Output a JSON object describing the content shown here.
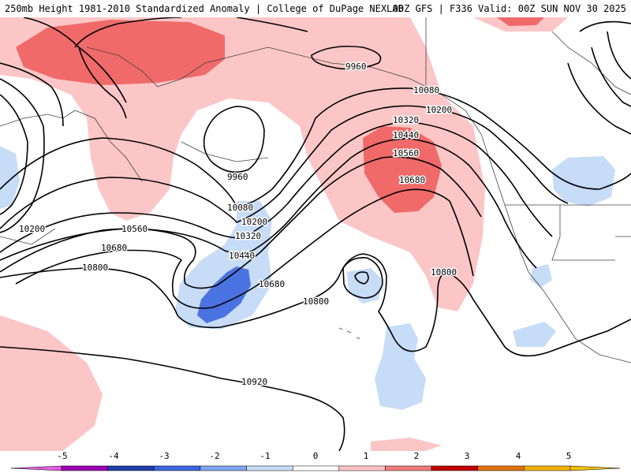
{
  "header": {
    "title": "250mb Height 1981-2010 Standardized Anomaly | College of DuPage NEXLAB",
    "run_info": "00Z GFS | F336 Valid: 00Z SUN NOV 30 2025"
  },
  "contour_labels": [
    {
      "id": "9960-north",
      "text": "9960"
    },
    {
      "id": "9960-low",
      "text": "9960"
    },
    {
      "id": "10080-ne",
      "text": "10080"
    },
    {
      "id": "10200-ne",
      "text": "10200"
    },
    {
      "id": "10320-mid",
      "text": "10320"
    },
    {
      "id": "10440-mid",
      "text": "10440"
    },
    {
      "id": "10560-mid",
      "text": "10560"
    },
    {
      "id": "10680-ridge",
      "text": "10680"
    },
    {
      "id": "10080-west",
      "text": "10080"
    },
    {
      "id": "10200-west",
      "text": "10200"
    },
    {
      "id": "10320-west",
      "text": "10320"
    },
    {
      "id": "10440-west",
      "text": "10440"
    },
    {
      "id": "10200-farwest",
      "text": "10200"
    },
    {
      "id": "10560-west",
      "text": "10560"
    },
    {
      "id": "10680-west",
      "text": "10680"
    },
    {
      "id": "10800-west",
      "text": "10800"
    },
    {
      "id": "10680-trough",
      "text": "10680"
    },
    {
      "id": "10800-central",
      "text": "10800"
    },
    {
      "id": "10800-east",
      "text": "10800"
    },
    {
      "id": "10920-south",
      "text": "10920"
    }
  ],
  "colorbar": {
    "ticks": [
      "-5",
      "-4",
      "-3",
      "-2",
      "-1",
      "0",
      "1",
      "2",
      "3",
      "4",
      "5"
    ],
    "segment_colors": [
      "#9b00b3",
      "#1f3fa8",
      "#3b66e0",
      "#7ea6f0",
      "#c6dcf7",
      "#ffffff",
      "#ffc4c4",
      "#f07a7a",
      "#c00000",
      "#e07000",
      "#f0b000"
    ],
    "left_end_color": "#e060e0",
    "right_end_color": "#f0c000"
  },
  "colors": {
    "anomaly_pos_1": "#fcc6c6",
    "anomaly_pos_2": "#f06a6a",
    "anomaly_neg_1": "#c6dcf7",
    "anomaly_neg_2": "#4a72e0",
    "contour": "#000000",
    "coast": "#444444"
  }
}
